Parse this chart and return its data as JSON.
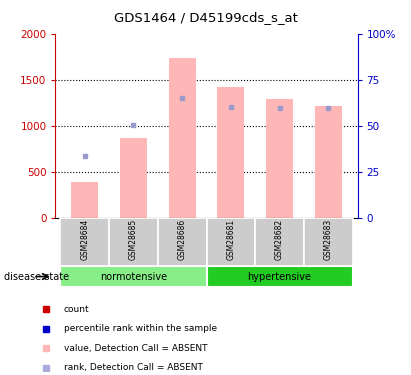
{
  "title": "GDS1464 / D45199cds_s_at",
  "samples": [
    "GSM28684",
    "GSM28685",
    "GSM28686",
    "GSM28681",
    "GSM28682",
    "GSM28683"
  ],
  "groups": [
    "normotensive",
    "hypertensive"
  ],
  "bar_values": [
    390,
    870,
    1740,
    1420,
    1290,
    1210
  ],
  "rank_dots": [
    670,
    1010,
    1300,
    1200,
    1190,
    1190
  ],
  "bar_color": "#FFB6B6",
  "rank_dot_color": "#9999CC",
  "left_ylim": [
    0,
    2000
  ],
  "right_ylim": [
    0,
    100
  ],
  "left_yticks": [
    0,
    500,
    1000,
    1500,
    2000
  ],
  "right_yticks": [
    0,
    25,
    50,
    75,
    100
  ],
  "left_yticklabels": [
    "0",
    "500",
    "1000",
    "1500",
    "2000"
  ],
  "right_yticklabels": [
    "0",
    "25",
    "50",
    "75",
    "100%"
  ],
  "left_tick_color": "#CC0000",
  "right_tick_color": "#0000CC",
  "normotensive_color": "#88EE88",
  "hypertensive_color": "#22CC22",
  "label_bg_color": "#CCCCCC",
  "legend_items": [
    {
      "label": "count",
      "color": "#CC0000"
    },
    {
      "label": "percentile rank within the sample",
      "color": "#0000CC"
    },
    {
      "label": "value, Detection Call = ABSENT",
      "color": "#FFB6B6"
    },
    {
      "label": "rank, Detection Call = ABSENT",
      "color": "#AAAADD"
    }
  ],
  "disease_state_label": "disease state",
  "bar_width": 0.55,
  "gridline_values": [
    500,
    1000,
    1500
  ]
}
